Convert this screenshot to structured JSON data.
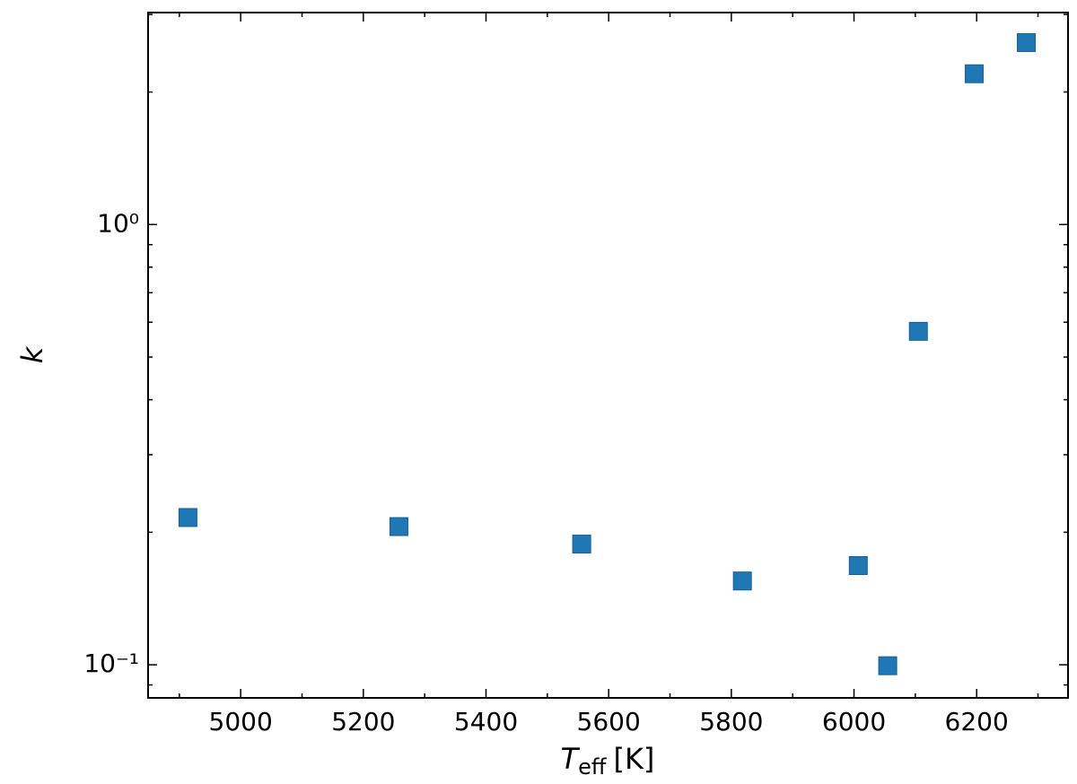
{
  "chart_data": {
    "type": "scatter",
    "xlabel": {
      "symbol": "T",
      "subscript": "eff",
      "unit": "[K]"
    },
    "ylabel": "k",
    "x": [
      4914,
      5258,
      5556,
      5818,
      6007,
      6055,
      6105,
      6196,
      6281
    ],
    "values": [
      0.216,
      0.206,
      0.188,
      0.155,
      0.168,
      0.0995,
      0.572,
      2.2,
      2.59
    ],
    "color": "#1f77b4",
    "xlim": [
      4849,
      6349
    ],
    "ylim": [
      0.0841,
      3.03
    ],
    "xticks": [
      5000,
      5200,
      5400,
      5600,
      5800,
      6000,
      6200
    ],
    "xminorticks": [
      4900,
      5100,
      5300,
      5500,
      5700,
      5900,
      6100,
      6300
    ],
    "yticks": [
      {
        "value": 0.1,
        "label": "10⁻¹"
      },
      {
        "value": 1,
        "label": "10⁰"
      }
    ],
    "yminorticks": [
      0.09,
      0.2,
      0.3,
      0.4,
      0.5,
      0.6,
      0.7,
      0.8,
      0.9,
      2,
      3
    ],
    "ylog": true,
    "grid": false
  }
}
